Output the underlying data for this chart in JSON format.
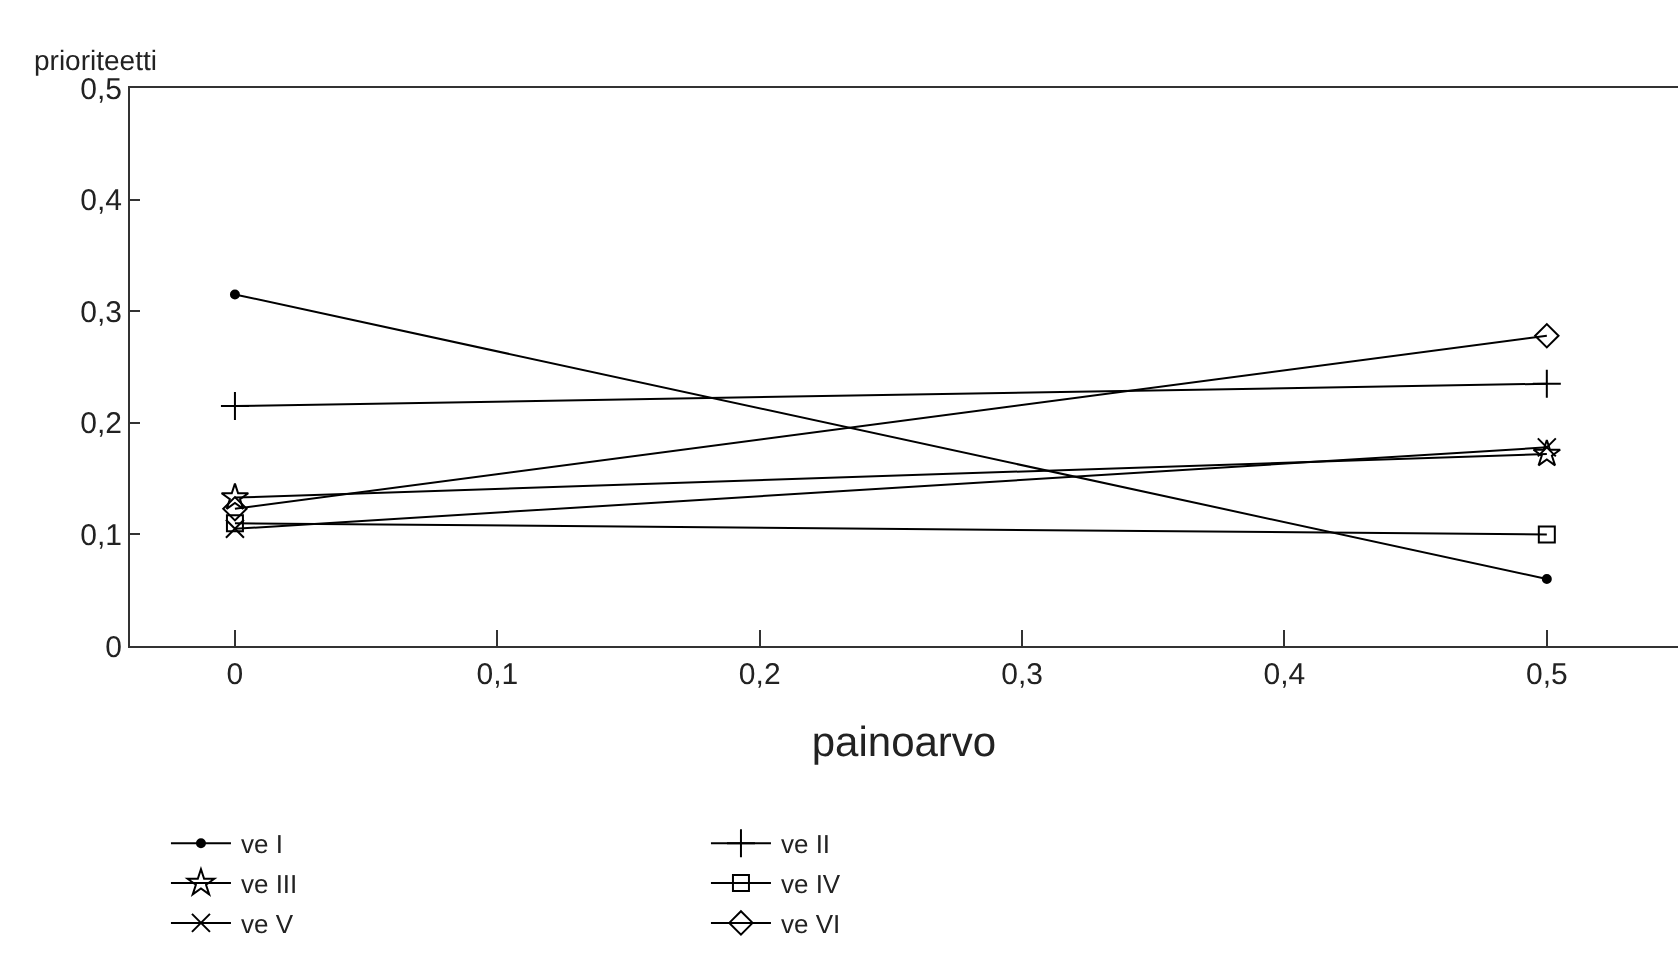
{
  "chart_data": {
    "type": "line",
    "ylabel": "prioriteetti",
    "xlabel": "painoarvo",
    "x": [
      0,
      0.5
    ],
    "xlim": [
      -0.04,
      0.55
    ],
    "ylim": [
      0,
      0.5
    ],
    "xticks": [
      {
        "value": 0,
        "label": "0"
      },
      {
        "value": 0.1,
        "label": "0,1"
      },
      {
        "value": 0.2,
        "label": "0,2"
      },
      {
        "value": 0.3,
        "label": "0,3"
      },
      {
        "value": 0.4,
        "label": "0,4"
      },
      {
        "value": 0.5,
        "label": "0,5"
      }
    ],
    "yticks": [
      {
        "value": 0,
        "label": "0"
      },
      {
        "value": 0.1,
        "label": "0,1"
      },
      {
        "value": 0.2,
        "label": "0,2"
      },
      {
        "value": 0.3,
        "label": "0,3"
      },
      {
        "value": 0.4,
        "label": "0,4"
      },
      {
        "value": 0.5,
        "label": "0,5"
      }
    ],
    "grid": false,
    "legend": "bottom",
    "line_style": "solid",
    "series": [
      {
        "name": "ve I",
        "color": "#000000",
        "marker": "circle",
        "values": [
          0.315,
          0.06
        ]
      },
      {
        "name": "ve II",
        "color": "#000000",
        "marker": "cross",
        "values": [
          0.215,
          0.235
        ]
      },
      {
        "name": "ve III",
        "color": "#000000",
        "marker": "star",
        "values": [
          0.133,
          0.172
        ]
      },
      {
        "name": "ve IV",
        "color": "#000000",
        "marker": "square",
        "values": [
          0.11,
          0.1
        ]
      },
      {
        "name": "ve V",
        "color": "#000000",
        "marker": "x",
        "values": [
          0.105,
          0.178
        ]
      },
      {
        "name": "ve VI",
        "color": "#000000",
        "marker": "diamond",
        "values": [
          0.123,
          0.278
        ]
      }
    ]
  }
}
